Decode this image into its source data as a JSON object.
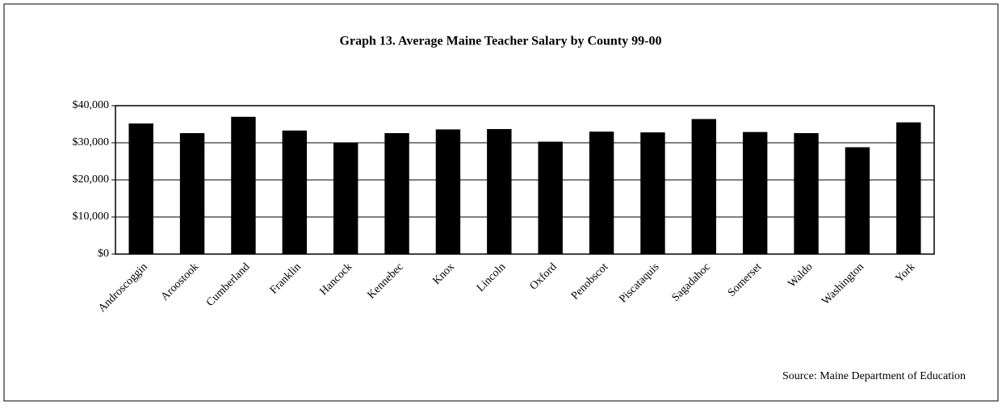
{
  "chart_data": {
    "type": "bar",
    "title": "Graph 13. Average Maine Teacher Salary by County 99-00",
    "source": "Source: Maine Department of Education",
    "categories": [
      "Androscoggin",
      "Aroostook",
      "Cumberland",
      "Franklin",
      "Hancock",
      "Kennebec",
      "Knox",
      "Lincoln",
      "Oxford",
      "Penobscot",
      "Piscataquis",
      "Sagadahoc",
      "Somerset",
      "Waldo",
      "Washington",
      "York"
    ],
    "values": [
      35200,
      32600,
      37000,
      33300,
      30100,
      32600,
      33600,
      33700,
      30300,
      33000,
      32800,
      36400,
      32900,
      32600,
      28800,
      35500
    ],
    "color": "#000000",
    "ylim": [
      0,
      40000
    ],
    "yticks": [
      {
        "value": 0,
        "label": "$0"
      },
      {
        "value": 10000,
        "label": "$10,000"
      },
      {
        "value": 20000,
        "label": "$20,000"
      },
      {
        "value": 30000,
        "label": "$30,000"
      },
      {
        "value": 40000,
        "label": "$40,000"
      }
    ],
    "grid": true
  }
}
